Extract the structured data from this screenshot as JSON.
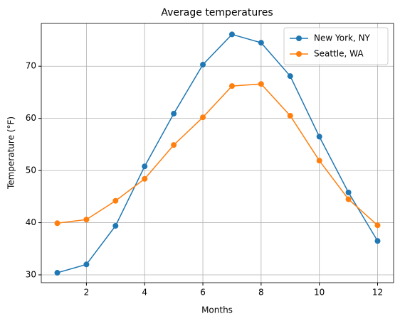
{
  "chart_data": {
    "type": "line",
    "title": "Average temperatures",
    "x_label": "Months",
    "y_label": "Temperature (°F)",
    "x": [
      1,
      2,
      3,
      4,
      5,
      6,
      7,
      8,
      9,
      10,
      11,
      12
    ],
    "series": [
      {
        "name": "New York, NY",
        "color": "#1f77b4",
        "values": [
          30.4,
          32.0,
          39.4,
          50.8,
          60.9,
          70.3,
          76.1,
          74.5,
          68.1,
          56.5,
          45.8,
          36.5
        ]
      },
      {
        "name": "Seattle, WA",
        "color": "#ff7f0e",
        "values": [
          39.9,
          40.6,
          44.2,
          48.4,
          54.9,
          60.2,
          66.2,
          66.6,
          60.5,
          51.9,
          44.5,
          39.5
        ]
      }
    ],
    "xlim": [
      0.45,
      12.55
    ],
    "xticks": [
      2,
      4,
      6,
      8,
      10,
      12
    ],
    "ylim": [
      28.5,
      78.2
    ],
    "yticks": [
      30,
      40,
      50,
      60,
      70
    ],
    "grid": true,
    "legend": "upper right"
  }
}
